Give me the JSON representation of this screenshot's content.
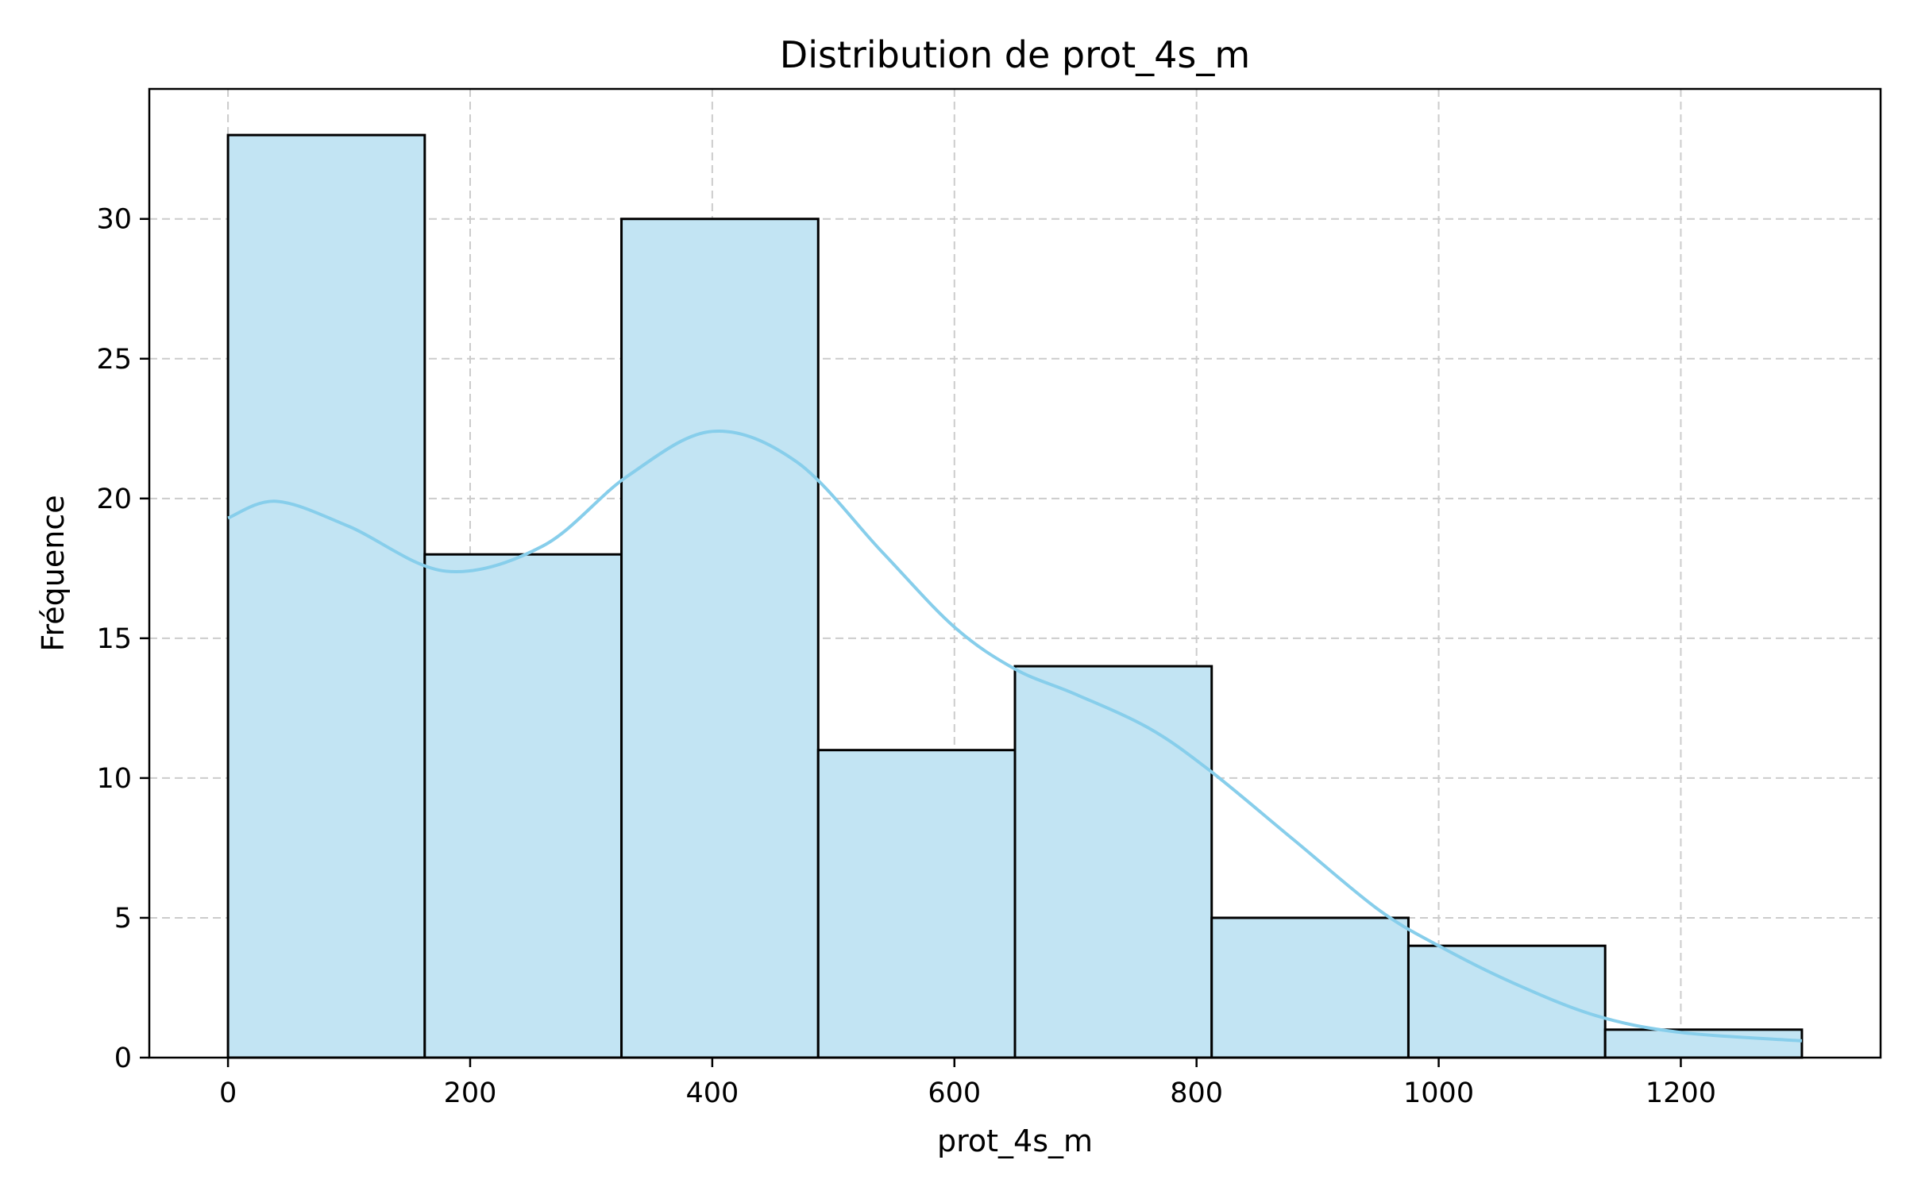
{
  "chart_data": {
    "type": "bar",
    "title": "Distribution de prot_4s_m",
    "xlabel": "prot_4s_m",
    "ylabel": "Fréquence",
    "bins": [
      {
        "x0": 0,
        "x1": 162.5,
        "count": 33
      },
      {
        "x0": 162.5,
        "x1": 325,
        "count": 18
      },
      {
        "x0": 325,
        "x1": 487.5,
        "count": 30
      },
      {
        "x0": 487.5,
        "x1": 650,
        "count": 11
      },
      {
        "x0": 650,
        "x1": 812.5,
        "count": 14
      },
      {
        "x0": 812.5,
        "x1": 975,
        "count": 5
      },
      {
        "x0": 975,
        "x1": 1137.5,
        "count": 4
      },
      {
        "x0": 1137.5,
        "x1": 1300,
        "count": 1
      }
    ],
    "kde": {
      "x": [
        0,
        40,
        100,
        180,
        260,
        330,
        400,
        470,
        540,
        600,
        650,
        700,
        760,
        810,
        880,
        950,
        1000,
        1060,
        1130,
        1200,
        1300
      ],
      "y": [
        19.3,
        19.9,
        19.0,
        17.4,
        18.3,
        20.8,
        22.4,
        21.3,
        18.1,
        15.4,
        13.9,
        13.0,
        11.8,
        10.3,
        7.8,
        5.3,
        4.0,
        2.7,
        1.5,
        0.9,
        0.6
      ]
    },
    "xlim": [
      -65,
      1365
    ],
    "ylim": [
      0,
      34.65
    ],
    "xticks": [
      0,
      200,
      400,
      600,
      800,
      1000,
      1200
    ],
    "yticks": [
      0,
      5,
      10,
      15,
      20,
      25,
      30
    ],
    "grid": true,
    "bar_color": "#c2e4f3",
    "bar_edge_color": "#000000",
    "kde_color": "#87ceeb",
    "grid_color": "#cccccc"
  }
}
